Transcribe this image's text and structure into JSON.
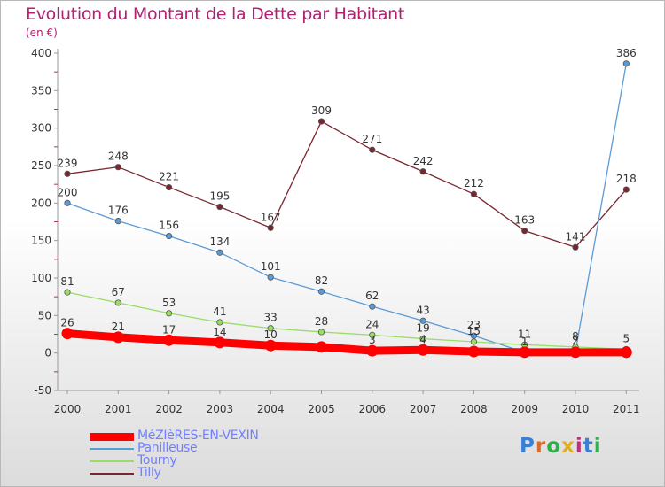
{
  "header": {
    "title": "Evolution du Montant de la Dette par Habitant",
    "subtitle": "(en €)"
  },
  "logo": {
    "text": "Proxiti"
  },
  "chart_data": {
    "type": "line",
    "title": "Evolution du Montant de la Dette par Habitant",
    "subtitle": "(en €)",
    "x": [
      "2000",
      "2001",
      "2002",
      "2003",
      "2004",
      "2005",
      "2006",
      "2007",
      "2008",
      "2009",
      "2010",
      "2011"
    ],
    "ylim": [
      -50,
      400
    ],
    "yticks": [
      -50,
      0,
      50,
      100,
      150,
      200,
      250,
      300,
      350,
      400
    ],
    "grid": false,
    "legend_position": "bottom-left",
    "series": [
      {
        "name": "MéZIèRES-EN-VEXIN",
        "color": "#ff0000",
        "values": [
          26,
          21,
          17,
          14,
          10,
          8,
          3,
          4,
          2,
          1,
          1,
          1
        ],
        "labels": [
          "26",
          "21",
          "17",
          "14",
          "10",
          "",
          "3",
          "4",
          "",
          "",
          "",
          ""
        ]
      },
      {
        "name": "Panilleuse",
        "color": "#5b9bd5",
        "values": [
          200,
          176,
          156,
          134,
          101,
          82,
          62,
          43,
          23,
          1,
          2,
          386
        ],
        "labels": [
          "200",
          "176",
          "156",
          "134",
          "101",
          "82",
          "62",
          "43",
          "23",
          "1",
          "2",
          "386"
        ]
      },
      {
        "name": "Tourny",
        "color": "#99dd66",
        "values": [
          81,
          67,
          53,
          41,
          33,
          28,
          24,
          19,
          15,
          11,
          8,
          5
        ],
        "labels": [
          "81",
          "67",
          "53",
          "41",
          "33",
          "28",
          "24",
          "19",
          "15",
          "11",
          "8",
          "5"
        ]
      },
      {
        "name": "Tilly",
        "color": "#7a2630",
        "values": [
          239,
          248,
          221,
          195,
          167,
          309,
          271,
          242,
          212,
          163,
          141,
          218
        ],
        "labels": [
          "239",
          "248",
          "221",
          "195",
          "167",
          "309",
          "271",
          "242",
          "212",
          "163",
          "141",
          "218"
        ]
      }
    ]
  }
}
